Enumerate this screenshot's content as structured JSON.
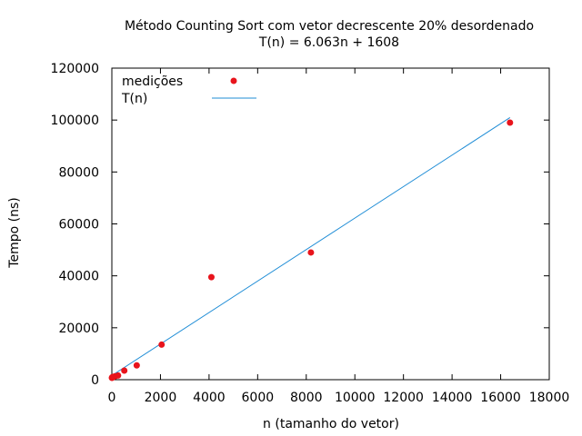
{
  "chart_data": {
    "type": "scatter",
    "title": "Método Counting Sort com vetor decrescente 20% desordenado",
    "subtitle": "T(n) = 6.063n + 1608",
    "xlabel": "n (tamanho do vetor)",
    "ylabel": "Tempo (ns)",
    "xlim": [
      0,
      18000
    ],
    "ylim": [
      0,
      120000
    ],
    "xticks": [
      0,
      2000,
      4000,
      6000,
      8000,
      10000,
      12000,
      14000,
      16000,
      18000
    ],
    "yticks": [
      0,
      20000,
      40000,
      60000,
      80000,
      100000,
      120000
    ],
    "grid": false,
    "legend_position": "top-left",
    "series": [
      {
        "name": "medições",
        "kind": "points",
        "color": "#e8141c",
        "x": [
          4,
          8,
          16,
          32,
          64,
          128,
          256,
          512,
          1024,
          2048,
          4096,
          8192,
          16384
        ],
        "y": [
          700,
          800,
          900,
          1000,
          1100,
          1300,
          1600,
          3500,
          5500,
          13500,
          39500,
          49000,
          99000
        ]
      },
      {
        "name": "T(n)",
        "kind": "line",
        "color": "#1f8dd6",
        "slope": 6.063,
        "intercept": 1608,
        "x_range": [
          0,
          16384
        ]
      }
    ]
  }
}
